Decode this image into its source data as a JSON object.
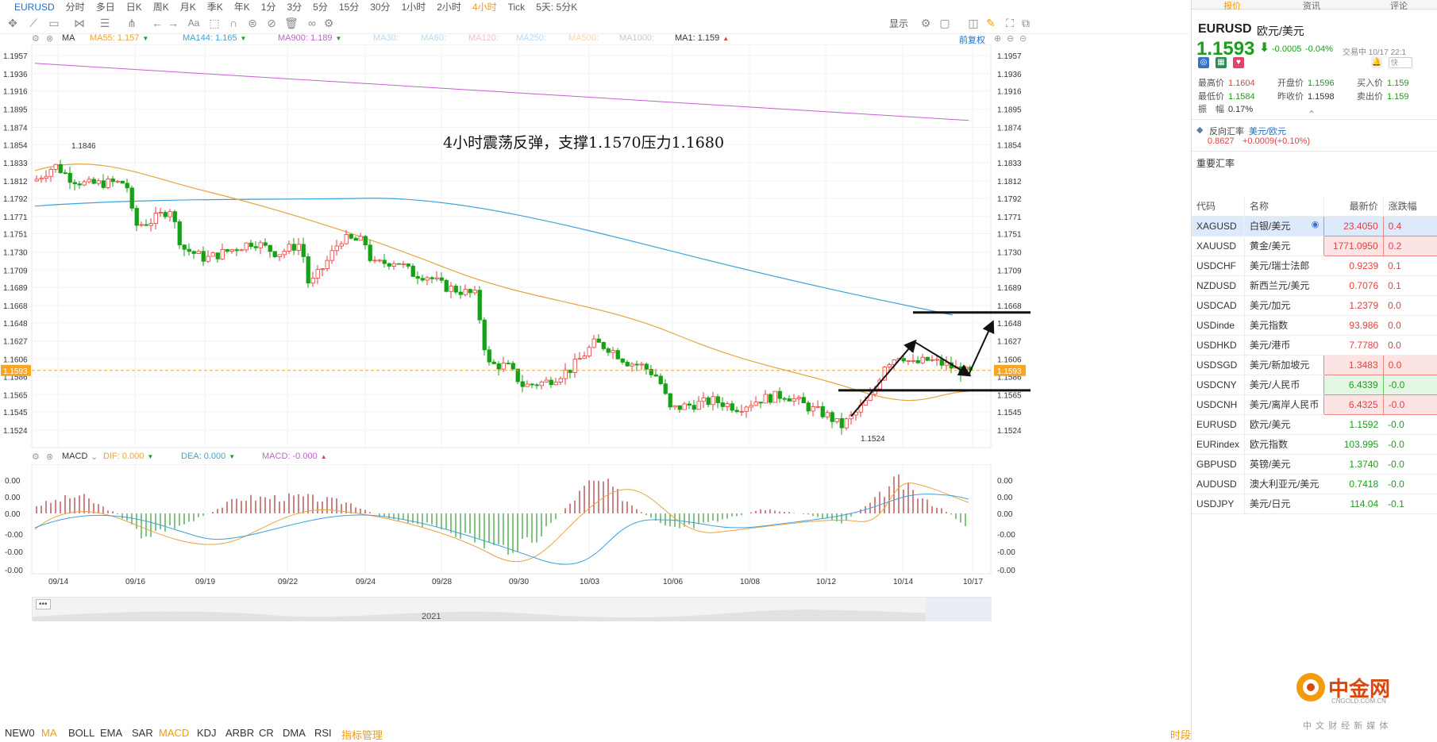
{
  "periods": [
    "EURUSD",
    "分时",
    "多日",
    "日K",
    "周K",
    "月K",
    "季K",
    "年K",
    "1分",
    "3分",
    "5分",
    "15分",
    "30分",
    "1小时",
    "2小时",
    "4小时",
    "Tick",
    "5天: 5分K"
  ],
  "active_period": "4小时",
  "toolbar_right": {
    "display": "显示"
  },
  "ma_row": {
    "label": "MA",
    "items": [
      {
        "text": "MA55: 1.157",
        "color": "#e8a33c",
        "arrow": "▼"
      },
      {
        "text": "MA144: 1.165",
        "color": "#3aa3d8",
        "arrow": "▼"
      },
      {
        "text": "MA900: 1.189",
        "color": "#c35fcf",
        "arrow": "▼"
      },
      {
        "text": "MA30:",
        "color": "#b8d9f0",
        "arrow": ""
      },
      {
        "text": "MA60:",
        "color": "#b8d9f0",
        "arrow": ""
      },
      {
        "text": "MA120:",
        "color": "#f6c1c1",
        "arrow": ""
      },
      {
        "text": "MA250:",
        "color": "#b8d9f0",
        "arrow": ""
      },
      {
        "text": "MA500:",
        "color": "#f4d7a3",
        "arrow": ""
      },
      {
        "text": "MA1000:",
        "color": "#c9c9c9",
        "arrow": ""
      },
      {
        "text": "MA1: 1.159",
        "color": "#333333",
        "arrow": "▲"
      }
    ],
    "right_link": "前复权"
  },
  "price_axis": [
    "1.1957",
    "1.1936",
    "1.1916",
    "1.1895",
    "1.1874",
    "1.1854",
    "1.1833",
    "1.1812",
    "1.1792",
    "1.1771",
    "1.1751",
    "1.1730",
    "1.1709",
    "1.1689",
    "1.1668",
    "1.1648",
    "1.1627",
    "1.1606",
    "1.1586",
    "1.1565",
    "1.1545",
    "1.1524"
  ],
  "current_price_tag": "1.1593",
  "high_label": "1.1846",
  "low_label": "1.1524",
  "annotation": "4小时震荡反弹，支撑1.1570压力1.1680",
  "macd_row": {
    "label": "MACD",
    "items": [
      {
        "text": "DIF: 0.000",
        "color": "#e8a33c",
        "arrow": "▼"
      },
      {
        "text": "DEA: 0.000",
        "color": "#3aa3d8",
        "arrow": "▼"
      },
      {
        "text": "MACD: -0.000",
        "color": "#c35fcf",
        "arrow": "▲"
      }
    ]
  },
  "macd_axis": [
    "0.00",
    "0.00",
    "0.00",
    "-0.00",
    "-0.00",
    "-0.00"
  ],
  "date_axis": [
    "09/14",
    "09/16",
    "09/19",
    "09/22",
    "09/24",
    "09/28",
    "09/30",
    "10/03",
    "10/06",
    "10/08",
    "10/12",
    "10/14",
    "10/17"
  ],
  "scroll_year": "2021",
  "bottom_tabs": [
    "NEW0",
    "MA",
    "BOLL",
    "EMA",
    "SAR",
    "MACD",
    "KDJ",
    "ARBR",
    "CR",
    "DMA",
    "RSI",
    "指标管理"
  ],
  "bottom_right": "时段",
  "right_panel": {
    "tabs": [
      "报价",
      "资讯",
      "评论"
    ],
    "symbol": "EURUSD",
    "name": "欧元/美元",
    "price": "1.1593",
    "change": "-0.0005",
    "change_pct": "-0.04%",
    "status": "交易中 10/17 22:1",
    "quote_fields": [
      {
        "label": "最高价",
        "value": "1.1604",
        "color": "#e53e3e"
      },
      {
        "label": "开盘价",
        "value": "1.1596",
        "color": "#1b9e1b"
      },
      {
        "label": "买入价",
        "value": "1.159",
        "color": "#1b9e1b"
      },
      {
        "label": "最低价",
        "value": "1.1584",
        "color": "#1b9e1b"
      },
      {
        "label": "昨收价",
        "value": "1.1598",
        "color": "#333333"
      },
      {
        "label": "卖出价",
        "value": "1.159",
        "color": "#1b9e1b"
      },
      {
        "label": "振　幅",
        "value": "0.17%",
        "color": "#333333"
      }
    ],
    "reverse_label": "反向汇率",
    "reverse_pair": "美元/欧元",
    "reverse_price": "0.8627",
    "reverse_change": "+0.0009(+0.10%)",
    "section_title": "重要汇率",
    "table_headers": [
      "代码",
      "名称",
      "最新价",
      "涨跌幅"
    ],
    "rows": [
      {
        "code": "XAGUSD",
        "name": "白银/美元",
        "price": "23.4050",
        "chg": "0.4",
        "dir": "up",
        "box": true,
        "hl": true
      },
      {
        "code": "XAUUSD",
        "name": "黄金/美元",
        "price": "1771.0950",
        "chg": "0.2",
        "dir": "up",
        "box": true,
        "hl": false
      },
      {
        "code": "USDCHF",
        "name": "美元/瑞士法郎",
        "price": "0.9239",
        "chg": "0.1",
        "dir": "up",
        "box": false,
        "hl": false
      },
      {
        "code": "NZDUSD",
        "name": "新西兰元/美元",
        "price": "0.7076",
        "chg": "0.1",
        "dir": "up",
        "box": false,
        "hl": false
      },
      {
        "code": "USDCAD",
        "name": "美元/加元",
        "price": "1.2379",
        "chg": "0.0",
        "dir": "up",
        "box": false,
        "hl": false
      },
      {
        "code": "USDinde",
        "name": "美元指数",
        "price": "93.986",
        "chg": "0.0",
        "dir": "up",
        "box": false,
        "hl": false
      },
      {
        "code": "USDHKD",
        "name": "美元/港币",
        "price": "7.7780",
        "chg": "0.0",
        "dir": "up",
        "box": false,
        "hl": false
      },
      {
        "code": "USDSGD",
        "name": "美元/新加坡元",
        "price": "1.3483",
        "chg": "0.0",
        "dir": "up",
        "box": true,
        "hl": false
      },
      {
        "code": "USDCNY",
        "name": "美元/人民币",
        "price": "6.4339",
        "chg": "-0.0",
        "dir": "down",
        "box": true,
        "hl": false
      },
      {
        "code": "USDCNH",
        "name": "美元/离岸人民币",
        "price": "6.4325",
        "chg": "-0.0",
        "dir": "up",
        "box": true,
        "hl": false
      },
      {
        "code": "EURUSD",
        "name": "欧元/美元",
        "price": "1.1592",
        "chg": "-0.0",
        "dir": "down",
        "box": false,
        "hl": false
      },
      {
        "code": "EURindex",
        "name": "欧元指数",
        "price": "103.995",
        "chg": "-0.0",
        "dir": "down",
        "box": false,
        "hl": false
      },
      {
        "code": "GBPUSD",
        "name": "英镑/美元",
        "price": "1.3740",
        "chg": "-0.0",
        "dir": "down",
        "box": false,
        "hl": false
      },
      {
        "code": "AUDUSD",
        "name": "澳大利亚元/美元",
        "price": "0.7418",
        "chg": "-0.0",
        "dir": "down",
        "box": false,
        "hl": false
      },
      {
        "code": "USDJPY",
        "name": "美元/日元",
        "price": "114.04",
        "chg": "-0.1",
        "dir": "down",
        "box": false,
        "hl": false
      }
    ],
    "watermark_name": "中金网",
    "watermark_sub": "CNGOLD.COM.CN",
    "watermark_tagline": "中 文 财 经 新 媒 体"
  },
  "colors": {
    "up": "#e53e3e",
    "down": "#1b9e1b",
    "ma55": "#e8a33c",
    "ma144": "#3aa3d8",
    "ma900": "#c35fcf",
    "accent": "#f29b0c",
    "link": "#1b6fc8"
  }
}
